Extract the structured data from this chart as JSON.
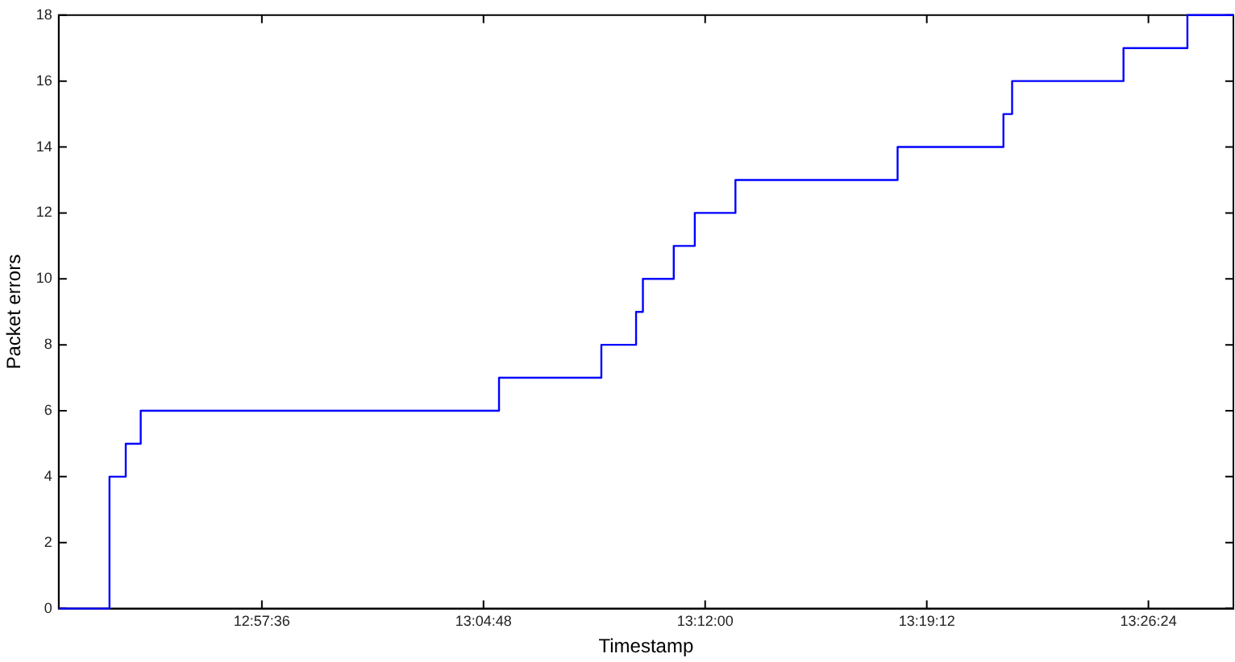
{
  "chart_data": {
    "type": "step",
    "xlabel": "Timestamp",
    "ylabel": "Packet errors",
    "x": [
      12.85,
      12.8775,
      12.8863,
      12.8944,
      13.0884,
      13.1438,
      13.1626,
      13.1663,
      13.183,
      13.1944,
      13.2164,
      13.3042,
      13.3615,
      13.3662,
      13.4265,
      13.4611,
      13.486
    ],
    "series": [
      {
        "color": "#0000ff",
        "values": [
          0,
          4,
          5,
          6,
          7,
          8,
          9,
          10,
          11,
          12,
          13,
          14,
          15,
          16,
          17,
          18,
          18
        ]
      }
    ],
    "xlim": [
      12.85,
      13.486
    ],
    "xticks": [
      {
        "value": 12.96,
        "label": "12:57:36"
      },
      {
        "value": 13.08,
        "label": "13:04:48"
      },
      {
        "value": 13.2,
        "label": "13:12:00"
      },
      {
        "value": 13.32,
        "label": "13:19:12"
      },
      {
        "value": 13.44,
        "label": "13:26:24"
      }
    ],
    "ylim": [
      0,
      18
    ],
    "yticks": [
      0,
      2,
      4,
      6,
      8,
      10,
      12,
      14,
      16,
      18
    ],
    "grid": false,
    "legend": false,
    "marker": "none",
    "line_style": "solid"
  }
}
